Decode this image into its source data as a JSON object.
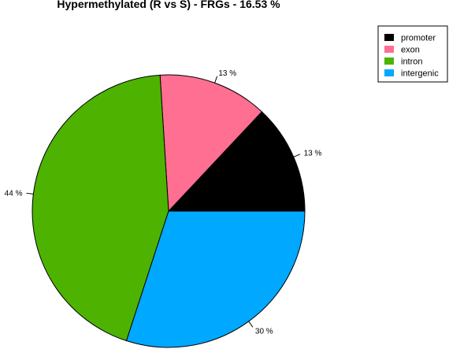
{
  "chart_data": {
    "type": "pie",
    "title": "Hypermethylated (R vs S) - FRGs - 16.53 %",
    "slices": [
      {
        "name": "promoter",
        "value": 13,
        "label": "13 %",
        "color": "#000000"
      },
      {
        "name": "exon",
        "value": 13,
        "label": "13 %",
        "color": "#ff6f91"
      },
      {
        "name": "intron",
        "value": 44,
        "label": "44 %",
        "color": "#4db300"
      },
      {
        "name": "intergenic",
        "value": 30,
        "label": "30 %",
        "color": "#00a8ff"
      }
    ],
    "direction": "counterclockwise",
    "start_angle_deg": 0,
    "legend": {
      "placement": "top-right",
      "entries": [
        "promoter",
        "exon",
        "intron",
        "intergenic"
      ]
    }
  }
}
